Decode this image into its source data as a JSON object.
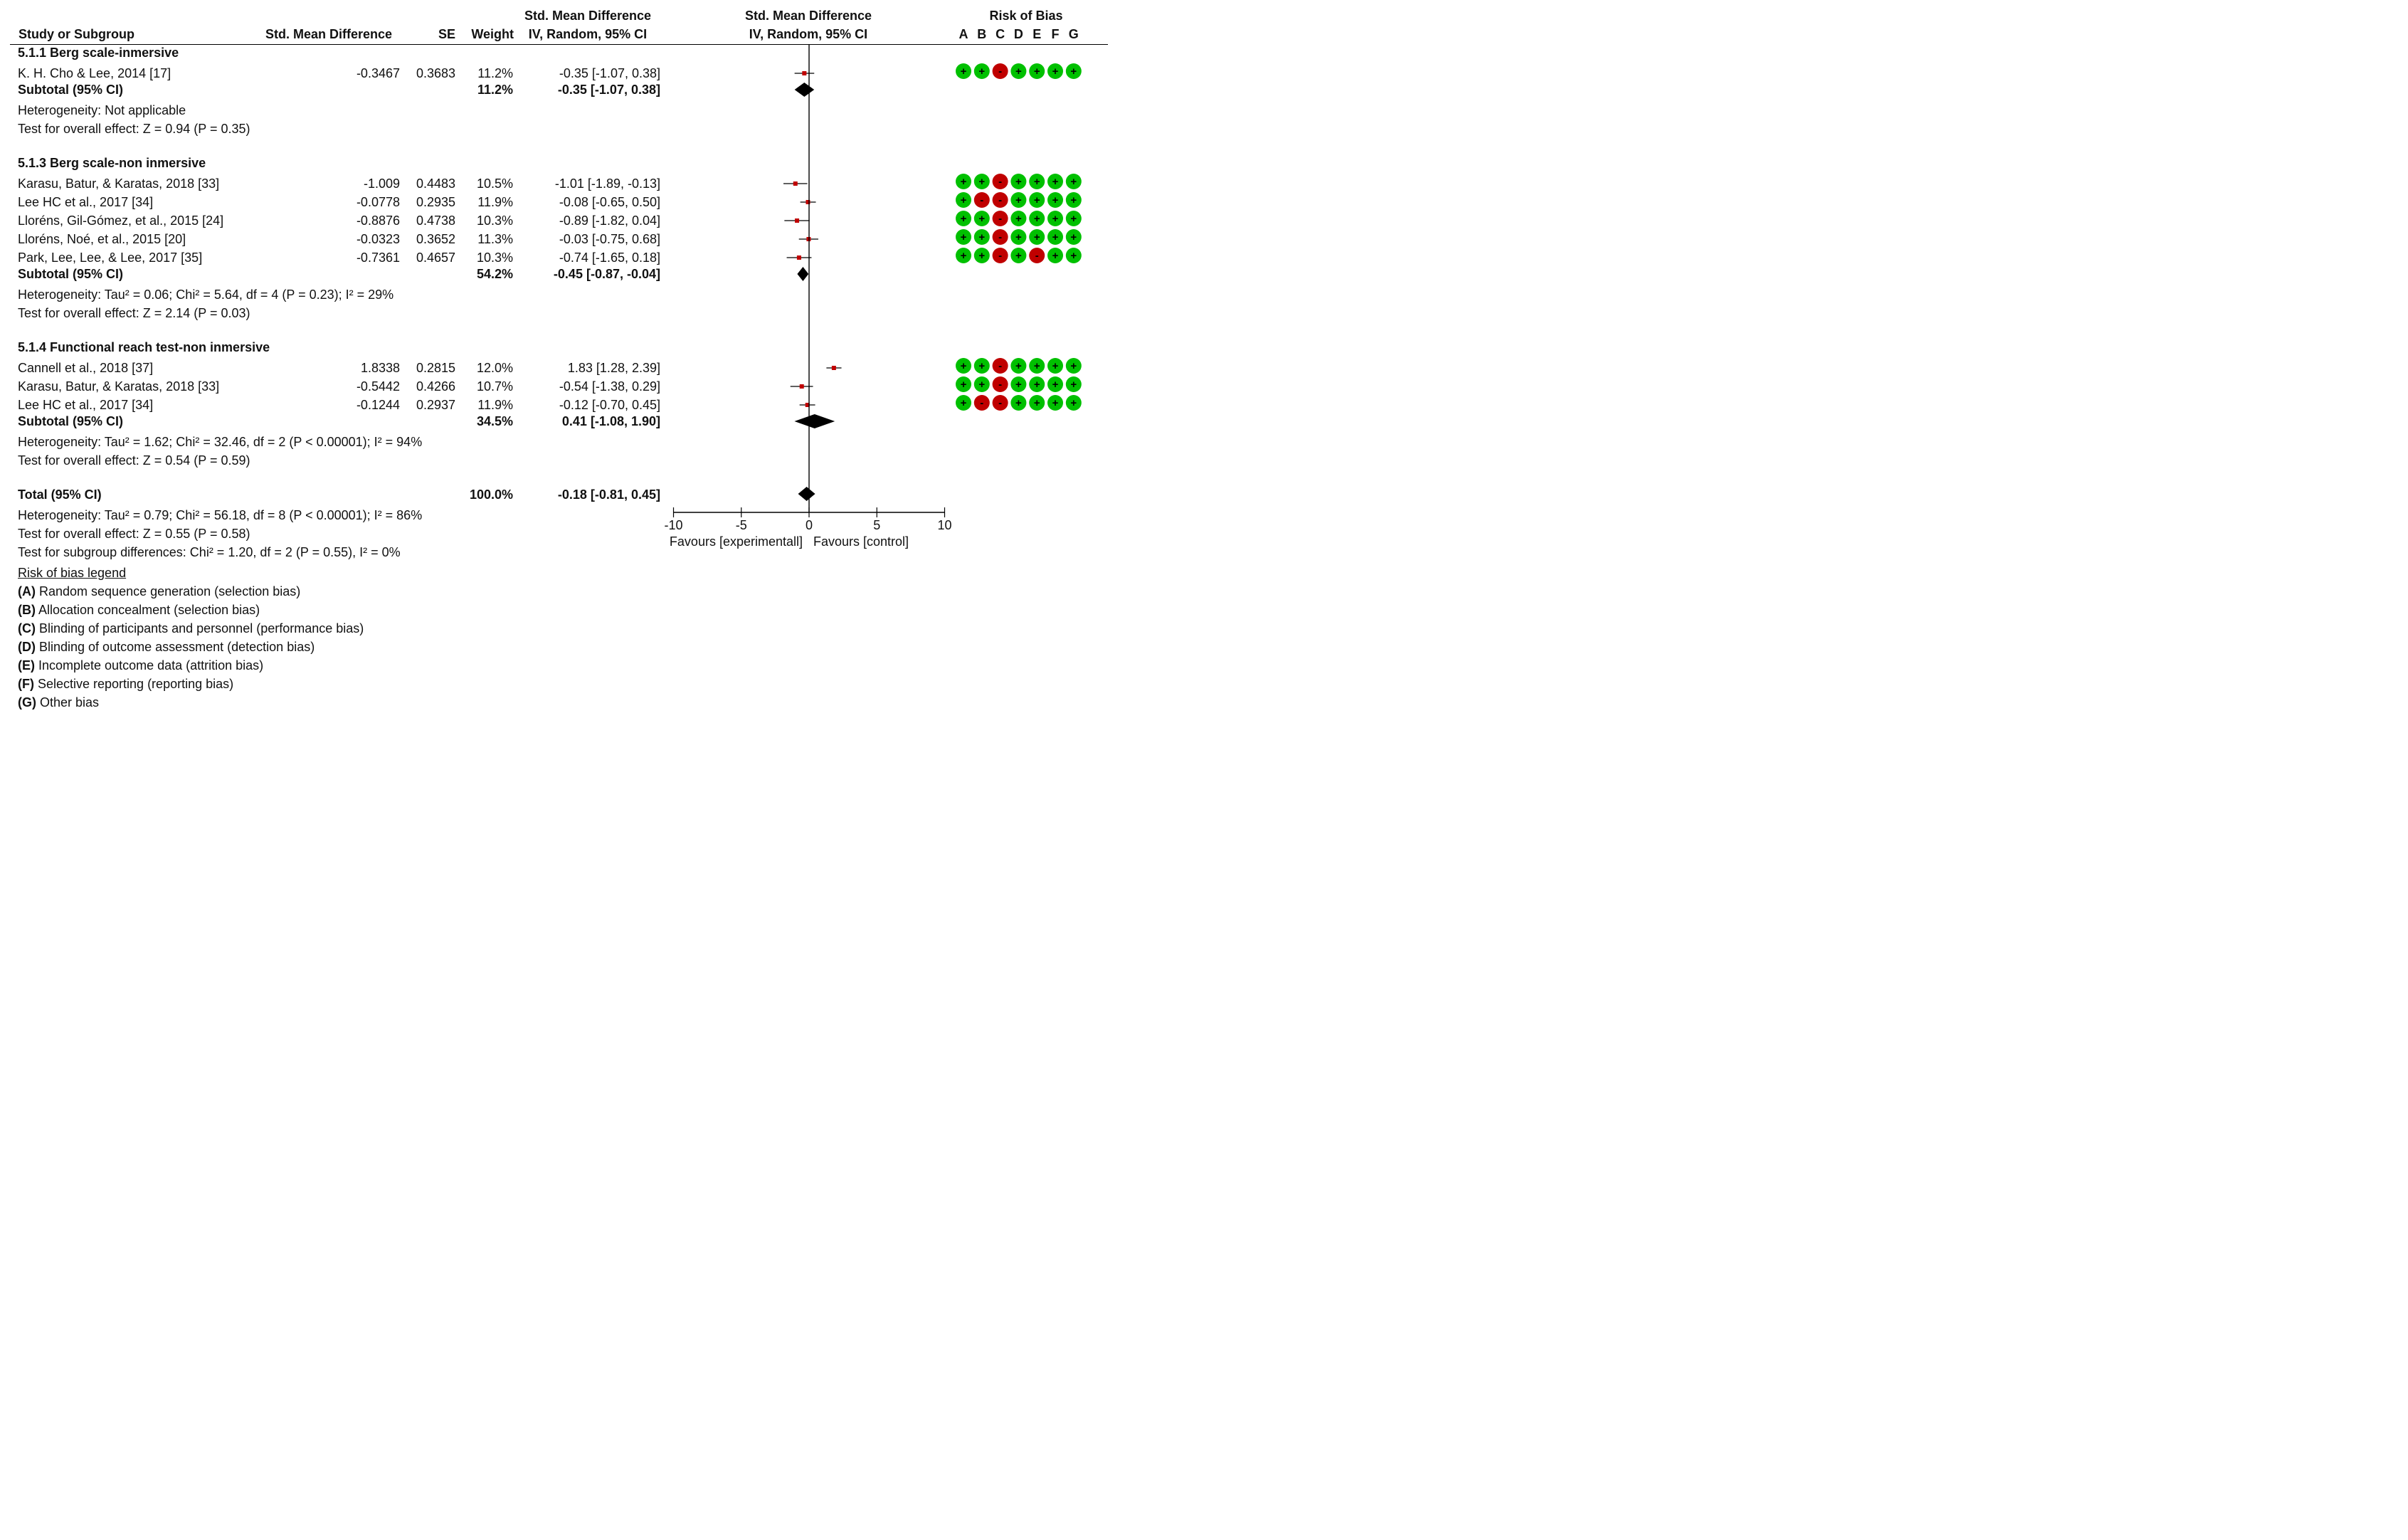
{
  "headers": {
    "study": "Study or Subgroup",
    "smd": "Std. Mean Difference",
    "se": "SE",
    "weight": "Weight",
    "ci_top": "Std. Mean Difference",
    "ci_bottom": "IV, Random, 95% CI",
    "plot_top": "Std. Mean Difference",
    "plot_bottom": "IV, Random, 95% CI",
    "rob_title": "Risk of Bias",
    "rob_letters": [
      "A",
      "B",
      "C",
      "D",
      "E",
      "F",
      "G"
    ]
  },
  "groups": [
    {
      "title": "5.1.1 Berg scale-inmersive",
      "studies": [
        {
          "name": "K. H. Cho & Lee, 2014 [17]",
          "smd": "-0.3467",
          "se": "0.3683",
          "weight": "11.2%",
          "ci": "-0.35 [-1.07, 0.38]",
          "est": -0.35,
          "lo": -1.07,
          "hi": 0.38,
          "rob": [
            "+",
            "+",
            "-",
            "+",
            "+",
            "+",
            "+"
          ]
        }
      ],
      "subtotal": {
        "label": "Subtotal (95% CI)",
        "weight": "11.2%",
        "ci": "-0.35 [-1.07, 0.38]",
        "est": -0.35,
        "lo": -1.07,
        "hi": 0.38
      },
      "heterogeneity": "Heterogeneity: Not applicable",
      "overall": "Test for overall effect: Z = 0.94 (P = 0.35)"
    },
    {
      "title": "5.1.3 Berg scale-non inmersive",
      "studies": [
        {
          "name": "Karasu, Batur, & Karatas, 2018 [33]",
          "smd": "-1.009",
          "se": "0.4483",
          "weight": "10.5%",
          "ci": "-1.01 [-1.89, -0.13]",
          "est": -1.01,
          "lo": -1.89,
          "hi": -0.13,
          "rob": [
            "+",
            "+",
            "-",
            "+",
            "+",
            "+",
            "+"
          ]
        },
        {
          "name": "Lee HC et al., 2017 [34]",
          "smd": "-0.0778",
          "se": "0.2935",
          "weight": "11.9%",
          "ci": "-0.08 [-0.65, 0.50]",
          "est": -0.08,
          "lo": -0.65,
          "hi": 0.5,
          "rob": [
            "+",
            "-",
            "-",
            "+",
            "+",
            "+",
            "+"
          ]
        },
        {
          "name": "Lloréns, Gil-Gómez, et al., 2015 [24]",
          "smd": "-0.8876",
          "se": "0.4738",
          "weight": "10.3%",
          "ci": "-0.89 [-1.82, 0.04]",
          "est": -0.89,
          "lo": -1.82,
          "hi": 0.04,
          "rob": [
            "+",
            "+",
            "-",
            "+",
            "+",
            "+",
            "+"
          ]
        },
        {
          "name": "Lloréns, Noé, et al., 2015 [20]",
          "smd": "-0.0323",
          "se": "0.3652",
          "weight": "11.3%",
          "ci": "-0.03 [-0.75, 0.68]",
          "est": -0.03,
          "lo": -0.75,
          "hi": 0.68,
          "rob": [
            "+",
            "+",
            "-",
            "+",
            "+",
            "+",
            "+"
          ]
        },
        {
          "name": "Park, Lee, Lee, & Lee, 2017 [35]",
          "smd": "-0.7361",
          "se": "0.4657",
          "weight": "10.3%",
          "ci": "-0.74 [-1.65, 0.18]",
          "est": -0.74,
          "lo": -1.65,
          "hi": 0.18,
          "rob": [
            "+",
            "+",
            "-",
            "+",
            "-",
            "+",
            "+"
          ]
        }
      ],
      "subtotal": {
        "label": "Subtotal (95% CI)",
        "weight": "54.2%",
        "ci": "-0.45 [-0.87, -0.04]",
        "est": -0.45,
        "lo": -0.87,
        "hi": -0.04
      },
      "heterogeneity": "Heterogeneity: Tau² = 0.06; Chi² = 5.64, df = 4 (P = 0.23); I² = 29%",
      "overall": "Test for overall effect: Z = 2.14 (P = 0.03)"
    },
    {
      "title": "5.1.4 Functional reach test-non inmersive",
      "studies": [
        {
          "name": "Cannell et al., 2018 [37]",
          "smd": "1.8338",
          "se": "0.2815",
          "weight": "12.0%",
          "ci": "1.83 [1.28, 2.39]",
          "est": 1.83,
          "lo": 1.28,
          "hi": 2.39,
          "rob": [
            "+",
            "+",
            "-",
            "+",
            "+",
            "+",
            "+"
          ]
        },
        {
          "name": "Karasu, Batur, & Karatas, 2018 [33]",
          "smd": "-0.5442",
          "se": "0.4266",
          "weight": "10.7%",
          "ci": "-0.54 [-1.38, 0.29]",
          "est": -0.54,
          "lo": -1.38,
          "hi": 0.29,
          "rob": [
            "+",
            "+",
            "-",
            "+",
            "+",
            "+",
            "+"
          ]
        },
        {
          "name": "Lee HC et al., 2017 [34]",
          "smd": "-0.1244",
          "se": "0.2937",
          "weight": "11.9%",
          "ci": "-0.12 [-0.70, 0.45]",
          "est": -0.12,
          "lo": -0.7,
          "hi": 0.45,
          "rob": [
            "+",
            "-",
            "-",
            "+",
            "+",
            "+",
            "+"
          ]
        }
      ],
      "subtotal": {
        "label": "Subtotal (95% CI)",
        "weight": "34.5%",
        "ci": "0.41 [-1.08, 1.90]",
        "est": 0.41,
        "lo": -1.08,
        "hi": 1.9
      },
      "heterogeneity": "Heterogeneity: Tau² = 1.62; Chi² = 32.46, df = 2 (P < 0.00001); I² = 94%",
      "overall": "Test for overall effect: Z = 0.54 (P = 0.59)"
    }
  ],
  "total": {
    "label": "Total (95% CI)",
    "weight": "100.0%",
    "ci": "-0.18 [-0.81, 0.45]",
    "est": -0.18,
    "lo": -0.81,
    "hi": 0.45,
    "heterogeneity": "Heterogeneity: Tau² = 0.79; Chi² = 56.18, df = 8 (P < 0.00001); I² = 86%",
    "overall": "Test for overall effect: Z = 0.55 (P = 0.58)",
    "subgroup": "Test for subgroup differences: Chi² = 1.20, df = 2 (P = 0.55), I² = 0%"
  },
  "axis": {
    "ticks": [
      -10,
      -5,
      0,
      5,
      10
    ],
    "tick_labels": [
      "-10",
      "-5",
      "0",
      "5",
      "10"
    ],
    "xlim": [
      -10,
      10
    ],
    "favours_left": "Favours [experimentall]",
    "favours_right": "Favours [control]"
  },
  "legend": {
    "title": "Risk of bias legend",
    "items": [
      {
        "key": "(A)",
        "text": " Random sequence generation (selection bias)"
      },
      {
        "key": "(B)",
        "text": " Allocation concealment (selection bias)"
      },
      {
        "key": "(C)",
        "text": " Blinding of participants and personnel (performance bias)"
      },
      {
        "key": "(D)",
        "text": " Blinding of outcome assessment (detection bias)"
      },
      {
        "key": "(E)",
        "text": " Incomplete outcome data (attrition bias)"
      },
      {
        "key": "(F)",
        "text": " Selective reporting (reporting bias)"
      },
      {
        "key": "(G)",
        "text": " Other bias"
      }
    ]
  },
  "colors": {
    "low_risk": "#00c000",
    "high_risk": "#c00000",
    "point": "#c00000",
    "diamond": "#000000"
  },
  "chart_data": {
    "type": "forest",
    "xlim": [
      -10,
      10
    ],
    "ticks": [
      -10,
      -5,
      0,
      5,
      10
    ],
    "xlabel_left": "Favours [experimentall]",
    "xlabel_right": "Favours [control]",
    "studies": [
      {
        "group": "5.1.1 Berg scale-inmersive",
        "name": "K. H. Cho & Lee, 2014 [17]",
        "est": -0.35,
        "lo": -1.07,
        "hi": 0.38,
        "weight": 11.2
      },
      {
        "group": "5.1.3 Berg scale-non inmersive",
        "name": "Karasu, Batur, & Karatas, 2018 [33]",
        "est": -1.01,
        "lo": -1.89,
        "hi": -0.13,
        "weight": 10.5
      },
      {
        "group": "5.1.3 Berg scale-non inmersive",
        "name": "Lee HC et al., 2017 [34]",
        "est": -0.08,
        "lo": -0.65,
        "hi": 0.5,
        "weight": 11.9
      },
      {
        "group": "5.1.3 Berg scale-non inmersive",
        "name": "Lloréns, Gil-Gómez, et al., 2015 [24]",
        "est": -0.89,
        "lo": -1.82,
        "hi": 0.04,
        "weight": 10.3
      },
      {
        "group": "5.1.3 Berg scale-non inmersive",
        "name": "Lloréns, Noé, et al., 2015 [20]",
        "est": -0.03,
        "lo": -0.75,
        "hi": 0.68,
        "weight": 11.3
      },
      {
        "group": "5.1.3 Berg scale-non inmersive",
        "name": "Park, Lee, Lee, & Lee, 2017 [35]",
        "est": -0.74,
        "lo": -1.65,
        "hi": 0.18,
        "weight": 10.3
      },
      {
        "group": "5.1.4 Functional reach test-non inmersive",
        "name": "Cannell et al., 2018 [37]",
        "est": 1.83,
        "lo": 1.28,
        "hi": 2.39,
        "weight": 12.0
      },
      {
        "group": "5.1.4 Functional reach test-non inmersive",
        "name": "Karasu, Batur, & Karatas, 2018 [33]",
        "est": -0.54,
        "lo": -1.38,
        "hi": 0.29,
        "weight": 10.7
      },
      {
        "group": "5.1.4 Functional reach test-non inmersive",
        "name": "Lee HC et al., 2017 [34]",
        "est": -0.12,
        "lo": -0.7,
        "hi": 0.45,
        "weight": 11.9
      }
    ],
    "subtotals": [
      {
        "group": "5.1.1 Berg scale-inmersive",
        "est": -0.35,
        "lo": -1.07,
        "hi": 0.38,
        "weight": 11.2
      },
      {
        "group": "5.1.3 Berg scale-non inmersive",
        "est": -0.45,
        "lo": -0.87,
        "hi": -0.04,
        "weight": 54.2
      },
      {
        "group": "5.1.4 Functional reach test-non inmersive",
        "est": 0.41,
        "lo": -1.08,
        "hi": 1.9,
        "weight": 34.5
      }
    ],
    "total": {
      "est": -0.18,
      "lo": -0.81,
      "hi": 0.45,
      "weight": 100.0
    }
  }
}
